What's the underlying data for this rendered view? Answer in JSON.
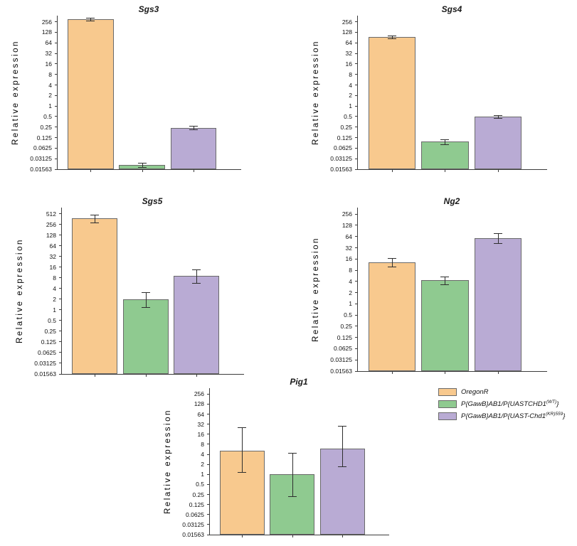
{
  "figure": {
    "background": "#ffffff"
  },
  "legend": {
    "position": "bottom-right",
    "items": [
      {
        "name": "oregonr",
        "color": "#f8c98e",
        "border": "#6a6a6a",
        "label_segments": [
          {
            "t": "OregonR"
          }
        ]
      },
      {
        "name": "uastchd1-wt",
        "color": "#8fca90",
        "border": "#6a6a6a",
        "label_segments": [
          {
            "t": "P{GawB}AB1/P{UASTCHD1"
          },
          {
            "s": "(WT)"
          },
          {
            "t": "}"
          }
        ]
      },
      {
        "name": "uast-chd1-kr559",
        "color": "#b9abd4",
        "border": "#6a6a6a",
        "label_segments": [
          {
            "t": "P{GawB}AB1/P{UAST-Chd1"
          },
          {
            "s": "(KR)559"
          },
          {
            "t": "}"
          }
        ]
      }
    ]
  },
  "chart_data": [
    {
      "type": "bar",
      "title": "Sgs3",
      "ylabel": "Relative expression",
      "scale": "log2",
      "grid": false,
      "ymin": 0.01563,
      "ymax": 384,
      "yticks": [
        "256",
        "128",
        "64",
        "32",
        "16",
        "8",
        "4",
        "2",
        "1",
        "0.5",
        "0.25",
        "0.125",
        "0.0625",
        "0.03125",
        "0.01563"
      ],
      "categories": [
        "OregonR",
        "P{GawB}AB1/P{UASTCHD1(WT)}",
        "P{GawB}AB1/P{UAST-Chd1(KR)559}"
      ],
      "values": [
        300,
        0.021,
        0.24
      ],
      "errors_low": [
        280,
        0.018,
        0.21
      ],
      "errors_high": [
        330,
        0.024,
        0.27
      ]
    },
    {
      "type": "bar",
      "title": "Sgs4",
      "ylabel": "Relative expression",
      "scale": "log2",
      "grid": false,
      "ymin": 0.01563,
      "ymax": 384,
      "yticks": [
        "256",
        "128",
        "64",
        "32",
        "16",
        "8",
        "4",
        "2",
        "1",
        "0.5",
        "0.25",
        "0.125",
        "0.0625",
        "0.03125",
        "0.01563"
      ],
      "categories": [
        "OregonR",
        "P{GawB}AB1/P{UASTCHD1(WT)}",
        "P{GawB}AB1/P{UAST-Chd1(KR)559}"
      ],
      "values": [
        95,
        0.095,
        0.5
      ],
      "errors_low": [
        85,
        0.082,
        0.45
      ],
      "errors_high": [
        106,
        0.11,
        0.56
      ]
    },
    {
      "type": "bar",
      "title": "Sgs5",
      "ylabel": "Relative expression",
      "scale": "log2",
      "grid": false,
      "ymin": 0.01563,
      "ymax": 768,
      "yticks": [
        "512",
        "256",
        "128",
        "64",
        "32",
        "16",
        "8",
        "4",
        "2",
        "1",
        "0.5",
        "0.25",
        "0.125",
        "0.0625",
        "0.03125",
        "0.01563"
      ],
      "categories": [
        "OregonR",
        "P{GawB}AB1/P{UASTCHD1(WT)}",
        "P{GawB}AB1/P{UAST-Chd1(KR)559}"
      ],
      "values": [
        380,
        2,
        9
      ],
      "errors_low": [
        290,
        1.2,
        5.8
      ],
      "errors_high": [
        490,
        3.1,
        14
      ]
    },
    {
      "type": "bar",
      "title": "Ng2",
      "ylabel": "Relative expression",
      "scale": "log2",
      "grid": false,
      "ymin": 0.01563,
      "ymax": 384,
      "yticks": [
        "256",
        "128",
        "64",
        "32",
        "16",
        "8",
        "4",
        "2",
        "1",
        "0.5",
        "0.25",
        "0.125",
        "0.0625",
        "0.03125",
        "0.01563"
      ],
      "categories": [
        "OregonR",
        "P{GawB}AB1/P{UASTCHD1(WT)}",
        "P{GawB}AB1/P{UAST-Chd1(KR)559}"
      ],
      "values": [
        13,
        4.3,
        58
      ],
      "errors_low": [
        10,
        3.4,
        43
      ],
      "errors_high": [
        17,
        5.4,
        80
      ]
    },
    {
      "type": "bar",
      "title": "Pig1",
      "ylabel": "Relative expression",
      "scale": "log2",
      "grid": false,
      "ymin": 0.01563,
      "ymax": 384,
      "yticks": [
        "256",
        "128",
        "64",
        "32",
        "16",
        "8",
        "4",
        "2",
        "1",
        "0.5",
        "0.25",
        "0.125",
        "0.0625",
        "0.03125",
        "0.01563"
      ],
      "categories": [
        "OregonR",
        "P{GawB}AB1/P{UASTCHD1(WT)}",
        "P{GawB}AB1/P{UAST-Chd1(KR)559}"
      ],
      "values": [
        5,
        1,
        6
      ],
      "errors_low": [
        1.2,
        0.22,
        1.7
      ],
      "errors_high": [
        26,
        4.4,
        28
      ]
    }
  ]
}
